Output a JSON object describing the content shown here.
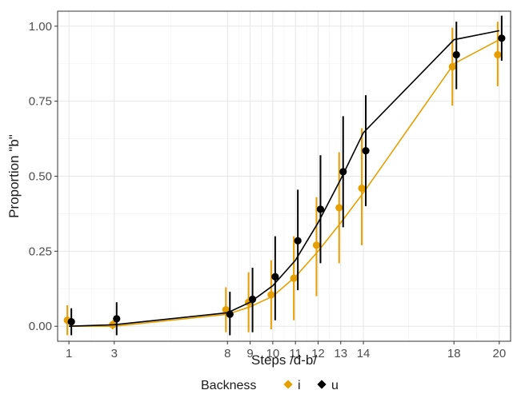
{
  "chart_data": {
    "type": "scatter",
    "xlabel": "Steps /d-b/",
    "ylabel": "Proportion \"b\"",
    "x_ticks": [
      1,
      3,
      8,
      9,
      10,
      11,
      12,
      13,
      14,
      18,
      20
    ],
    "y_ticks": [
      "0.00",
      "0.25",
      "0.50",
      "0.75",
      "1.00"
    ],
    "y_tick_values": [
      0,
      0.25,
      0.5,
      0.75,
      1.0
    ],
    "xlim": [
      0.5,
      20.5
    ],
    "ylim": [
      -0.05,
      1.05
    ],
    "grid": true,
    "legend": {
      "title": "Backness",
      "placement": "bottom",
      "entries": [
        "i",
        "u"
      ]
    },
    "series": [
      {
        "name": "i",
        "color": "#E69F00",
        "points": [
          {
            "x": 1,
            "y": 0.02,
            "lo": -0.03,
            "hi": 0.07
          },
          {
            "x": 3,
            "y": 0.005,
            "lo": -0.01,
            "hi": 0.02
          },
          {
            "x": 8,
            "y": 0.055,
            "lo": -0.02,
            "hi": 0.13
          },
          {
            "x": 9,
            "y": 0.08,
            "lo": -0.02,
            "hi": 0.18
          },
          {
            "x": 10,
            "y": 0.105,
            "lo": -0.01,
            "hi": 0.22
          },
          {
            "x": 11,
            "y": 0.16,
            "lo": 0.02,
            "hi": 0.3
          },
          {
            "x": 12,
            "y": 0.27,
            "lo": 0.1,
            "hi": 0.43
          },
          {
            "x": 13,
            "y": 0.395,
            "lo": 0.21,
            "hi": 0.58
          },
          {
            "x": 14,
            "y": 0.46,
            "lo": 0.27,
            "hi": 0.66
          },
          {
            "x": 18,
            "y": 0.865,
            "lo": 0.735,
            "hi": 0.995
          },
          {
            "x": 20,
            "y": 0.905,
            "lo": 0.8,
            "hi": 1.015
          }
        ],
        "fit": [
          {
            "x": 1,
            "y": 0.0
          },
          {
            "x": 3,
            "y": 0.0
          },
          {
            "x": 8,
            "y": 0.04
          },
          {
            "x": 9,
            "y": 0.065
          },
          {
            "x": 10,
            "y": 0.1
          },
          {
            "x": 11,
            "y": 0.165
          },
          {
            "x": 12,
            "y": 0.25
          },
          {
            "x": 13,
            "y": 0.345
          },
          {
            "x": 14,
            "y": 0.445
          },
          {
            "x": 18,
            "y": 0.875
          },
          {
            "x": 20,
            "y": 0.955
          }
        ]
      },
      {
        "name": "u",
        "color": "#000000",
        "points": [
          {
            "x": 1,
            "y": 0.015,
            "lo": -0.03,
            "hi": 0.06
          },
          {
            "x": 3,
            "y": 0.025,
            "lo": -0.03,
            "hi": 0.08
          },
          {
            "x": 8,
            "y": 0.04,
            "lo": -0.03,
            "hi": 0.115
          },
          {
            "x": 9,
            "y": 0.09,
            "lo": -0.02,
            "hi": 0.195
          },
          {
            "x": 10,
            "y": 0.165,
            "lo": 0.02,
            "hi": 0.3
          },
          {
            "x": 11,
            "y": 0.285,
            "lo": 0.12,
            "hi": 0.455
          },
          {
            "x": 12,
            "y": 0.39,
            "lo": 0.21,
            "hi": 0.57
          },
          {
            "x": 13,
            "y": 0.515,
            "lo": 0.33,
            "hi": 0.7
          },
          {
            "x": 14,
            "y": 0.585,
            "lo": 0.4,
            "hi": 0.77
          },
          {
            "x": 18,
            "y": 0.905,
            "lo": 0.79,
            "hi": 1.015
          },
          {
            "x": 20,
            "y": 0.96,
            "lo": 0.885,
            "hi": 1.035
          }
        ],
        "fit": [
          {
            "x": 1,
            "y": 0.0
          },
          {
            "x": 3,
            "y": 0.005
          },
          {
            "x": 8,
            "y": 0.045
          },
          {
            "x": 9,
            "y": 0.08
          },
          {
            "x": 10,
            "y": 0.135
          },
          {
            "x": 11,
            "y": 0.22
          },
          {
            "x": 12,
            "y": 0.345
          },
          {
            "x": 13,
            "y": 0.49
          },
          {
            "x": 14,
            "y": 0.645
          },
          {
            "x": 18,
            "y": 0.955
          },
          {
            "x": 20,
            "y": 0.985
          }
        ]
      }
    ]
  }
}
